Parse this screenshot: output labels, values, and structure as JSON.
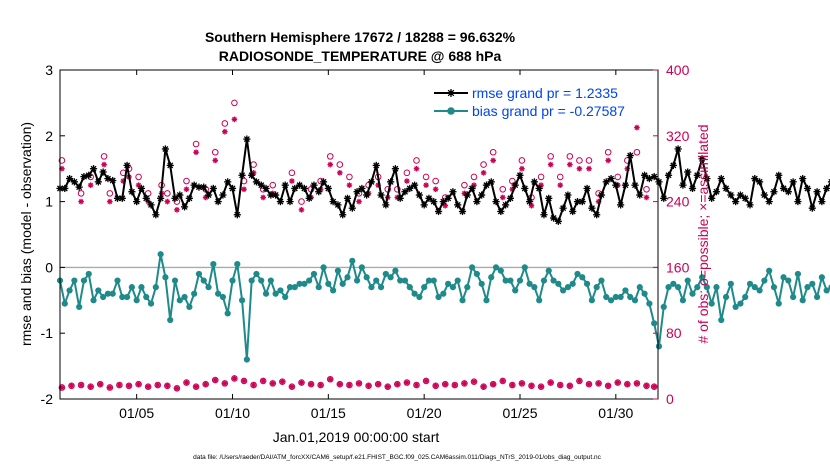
{
  "chart_data": {
    "type": "line",
    "title_line1": "Southern Hemisphere 17672 / 18288 = 96.632%",
    "title_line2": "RADIOSONDE_TEMPERATURE @ 688 hPa",
    "xlabel": "Jan.01,2019 00:00:00 start",
    "ylabel_left": "rmse and bias (model - observation)",
    "ylabel_right": "# of obs: o=possible; ×=assimilated",
    "footer": "data file: /Users/raeder/DAI/ATM_forcXX/CAM6_setup/f.e21.FHIST_BGC.f09_025.CAM6assim.011/Diags_NTrS_2019-01/obs_diag_output.nc",
    "xlim": [
      1,
      32.2
    ],
    "ylim_left": [
      -2,
      3
    ],
    "ylim_right": [
      0,
      400
    ],
    "xticks": [
      5,
      10,
      15,
      20,
      25,
      30
    ],
    "xtick_labels": [
      "01/05",
      "01/10",
      "01/15",
      "01/20",
      "01/25",
      "01/30"
    ],
    "yticks_left": [
      -2,
      -1,
      0,
      1,
      2,
      3
    ],
    "ytick_labels_left": [
      "-2",
      "-1",
      "0",
      "1",
      "2",
      "3"
    ],
    "yticks_right": [
      0,
      80,
      160,
      240,
      320,
      400
    ],
    "ytick_labels_right": [
      "0",
      "80",
      "160",
      "240",
      "320",
      "400"
    ],
    "legend": {
      "rmse": "rmse grand pr = 1.2335",
      "bias": "bias grand pr = -0.27587"
    },
    "colors": {
      "rmse": "#000000",
      "bias": "#1f8a8a",
      "obs": "#cc0055",
      "legend_text": "#0044ee",
      "zero_line": "#aaaaaa"
    },
    "x_start": 1.0,
    "x_step": 0.25,
    "rmse": [
      1.2,
      1.2,
      1.35,
      1.3,
      1.22,
      1.38,
      1.4,
      1.5,
      1.3,
      1.45,
      1.35,
      1.32,
      1.05,
      1.05,
      1.55,
      1.15,
      1.0,
      1.2,
      1.05,
      0.95,
      0.8,
      1.05,
      1.8,
      1.55,
      1.05,
      1.1,
      0.92,
      1.05,
      1.25,
      1.22,
      1.22,
      1.1,
      1.2,
      1.0,
      1.1,
      1.3,
      1.2,
      0.8,
      1.4,
      1.95,
      1.4,
      1.3,
      1.25,
      1.2,
      1.1,
      1.1,
      1.0,
      1.25,
      1.0,
      1.2,
      1.25,
      1.2,
      1.05,
      1.25,
      1.15,
      1.3,
      1.2,
      1.0,
      0.95,
      0.8,
      1.05,
      0.9,
      1.15,
      1.2,
      1.1,
      1.3,
      1.55,
      1.1,
      0.95,
      1.3,
      1.5,
      1.05,
      1.15,
      1.2,
      1.25,
      1.1,
      0.95,
      1.05,
      1.0,
      0.85,
      1.0,
      1.05,
      1.15,
      0.95,
      0.85,
      1.1,
      1.2,
      1.0,
      1.1,
      1.25,
      1.3,
      1.0,
      0.85,
      0.95,
      1.05,
      1.25,
      1.4,
      1.2,
      1.0,
      1.3,
      1.2,
      0.8,
      1.05,
      0.75,
      0.7,
      0.9,
      1.1,
      0.85,
      1.0,
      1.0,
      1.2,
      0.9,
      0.8,
      1.1,
      1.3,
      1.35,
      1.25,
      0.95,
      1.25,
      1.7,
      1.25,
      1.1,
      1.4,
      1.35,
      1.38,
      1.3,
      1.05,
      1.4,
      1.55,
      1.8,
      1.25,
      1.45,
      1.2,
      1.4,
      1.65,
      1.35,
      1.05,
      1.15,
      1.35,
      1.2,
      1.1,
      1.0,
      1.1,
      1.05,
      0.95,
      1.35,
      1.3,
      1.1,
      1.0,
      1.15,
      1.4,
      1.2,
      1.15,
      1.3,
      1.0,
      1.35,
      1.2,
      0.9,
      1.15,
      1.0,
      1.2,
      1.3,
      1.2,
      1.05,
      1.3,
      1.05,
      1.2,
      1.2,
      1.0,
      0.75,
      1.0,
      1.3,
      1.15,
      1.1,
      1.4,
      1.25,
      1.1,
      1.3,
      1.6,
      1.4,
      1.2,
      1.45,
      1.3,
      1.0,
      1.15,
      1.2,
      1.3,
      1.1,
      1.1,
      1.2,
      0.8,
      1.2,
      1.0,
      1.1,
      0.95,
      0.9,
      1.1,
      1.15,
      1.05,
      1.0,
      0.8,
      1.0,
      1.3,
      1.05,
      1.2,
      1.1,
      1.6,
      1.4,
      1.5,
      1.3,
      1.1,
      1.2,
      1.15,
      1.2,
      1.2,
      1.15,
      1.05,
      1.02,
      1.0
    ],
    "bias": [
      -0.2,
      -0.55,
      -0.35,
      -0.2,
      -0.6,
      -0.2,
      -0.1,
      -0.5,
      -0.35,
      -0.45,
      -0.4,
      -0.4,
      -0.2,
      -0.45,
      -0.45,
      -0.3,
      -0.5,
      -0.3,
      -0.45,
      -0.55,
      -0.3,
      0.2,
      -0.15,
      -0.8,
      -0.2,
      -0.5,
      -0.45,
      -0.6,
      -0.4,
      -0.1,
      -0.2,
      -0.3,
      0.05,
      -0.4,
      -0.45,
      -0.7,
      -0.2,
      0.05,
      -0.5,
      -1.4,
      -0.2,
      -0.1,
      -0.2,
      -0.4,
      -0.2,
      -0.4,
      -0.35,
      -0.45,
      -0.3,
      -0.3,
      -0.25,
      -0.25,
      -0.2,
      -0.1,
      -0.3,
      0.0,
      -0.25,
      -0.35,
      -0.05,
      -0.25,
      -0.15,
      0.1,
      -0.2,
      0.0,
      -0.15,
      -0.3,
      -0.2,
      -0.3,
      -0.1,
      -0.15,
      -0.05,
      -0.2,
      -0.2,
      -0.3,
      -0.4,
      -0.45,
      -0.3,
      -0.2,
      -0.2,
      -0.45,
      -0.4,
      -0.25,
      -0.3,
      -0.2,
      -0.5,
      -0.3,
      0.0,
      -0.1,
      -0.25,
      -0.5,
      -0.15,
      0.0,
      -0.05,
      -0.2,
      -0.2,
      -0.35,
      -0.2,
      0.0,
      -0.25,
      -0.3,
      -0.5,
      -0.2,
      -0.05,
      -0.2,
      -0.25,
      -0.35,
      -0.3,
      -0.25,
      -0.1,
      -0.15,
      -0.25,
      -0.5,
      -0.3,
      -0.2,
      -0.45,
      -0.5,
      -0.45,
      -0.45,
      -0.35,
      -0.45,
      -0.5,
      -0.3,
      -0.4,
      -0.55,
      -0.85,
      -1.2,
      -0.6,
      -0.3,
      -0.25,
      -0.3,
      -0.5,
      -0.2,
      -0.4,
      -0.3,
      -0.15,
      -0.3,
      -0.55,
      -0.3,
      -0.8,
      -0.45,
      -0.25,
      -0.6,
      -0.55,
      -0.45,
      -0.25,
      -0.3,
      -0.35,
      -0.2,
      -0.05,
      -0.3,
      -0.55,
      -0.15,
      -0.2,
      -0.45,
      -0.1,
      -0.5,
      -0.3,
      -0.25,
      -0.45,
      -0.15,
      -0.35,
      -0.3,
      -0.4,
      -0.3,
      -0.3,
      -0.25,
      -0.2,
      -0.15,
      -0.1,
      -0.25,
      -0.1,
      -0.3,
      0.25,
      -0.1,
      0.2,
      -0.15,
      -0.4,
      -0.1,
      -0.25,
      0.5,
      0.05,
      -0.25,
      -0.1,
      -0.2,
      -0.15,
      0.2,
      -0.25,
      -0.3,
      0.55,
      -0.35,
      -0.55,
      -0.5,
      -0.35,
      -0.45,
      -0.45,
      -0.5,
      -0.35,
      -0.3,
      -0.6,
      -0.35,
      -0.45,
      -0.5,
      -0.3,
      -0.3,
      -0.4,
      -0.3,
      -0.2,
      -0.4,
      -0.45,
      -0.3,
      -0.35,
      -0.25,
      0.25,
      -0.05,
      -0.1,
      -0.5,
      -0.7
    ],
    "obs_possible_x": [
      1.1,
      2.1,
      2.6,
      3.3,
      3.6,
      4.3,
      4.6,
      5.1,
      5.6,
      6.3,
      6.6,
      7.1,
      7.6,
      8.1,
      8.6,
      9.1,
      9.6,
      10.1,
      10.6,
      11.1,
      11.6,
      12.1,
      13.1,
      13.6,
      14.1,
      14.6,
      15.1,
      15.6,
      16.1,
      16.6,
      17.1,
      17.6,
      18.1,
      18.6,
      19.1,
      19.6,
      20.1,
      20.6,
      21.1,
      22.1,
      22.6,
      23.1,
      23.6,
      24.1,
      24.6,
      25.1,
      25.6,
      26.1,
      26.6,
      27.1,
      27.6,
      28.1,
      28.6,
      29.1,
      29.6,
      30.1,
      30.6,
      31.1,
      31.6
    ],
    "obs_possible_y": [
      290,
      250,
      270,
      295,
      250,
      275,
      280,
      270,
      250,
      260,
      250,
      240,
      265,
      310,
      255,
      300,
      335,
      360,
      265,
      285,
      255,
      260,
      275,
      240,
      255,
      265,
      295,
      285,
      270,
      250,
      260,
      270,
      255,
      255,
      275,
      290,
      270,
      265,
      245,
      260,
      270,
      285,
      300,
      255,
      265,
      290,
      245,
      270,
      295,
      270,
      295,
      290,
      290,
      250,
      300,
      270,
      290,
      300,
      255
    ],
    "obs_assim_x": [
      1.1,
      2.1,
      2.6,
      3.3,
      3.6,
      4.3,
      4.6,
      5.1,
      5.6,
      6.3,
      6.6,
      7.1,
      7.6,
      8.1,
      8.6,
      9.1,
      9.6,
      10.1,
      10.6,
      11.1,
      11.6,
      12.1,
      13.1,
      13.6,
      14.1,
      14.6,
      15.1,
      15.6,
      16.1,
      16.6,
      17.1,
      17.6,
      18.1,
      18.6,
      19.1,
      19.6,
      20.1,
      20.6,
      21.1,
      22.1,
      22.6,
      23.1,
      23.6,
      24.1,
      24.6,
      25.1,
      25.6,
      26.1,
      26.6,
      27.1,
      27.6,
      28.1,
      28.6,
      29.1,
      29.6,
      30.1,
      30.6,
      31.1,
      31.6
    ],
    "obs_assim_y": [
      280,
      240,
      260,
      285,
      240,
      265,
      270,
      260,
      240,
      250,
      240,
      230,
      255,
      300,
      245,
      290,
      325,
      340,
      255,
      275,
      245,
      250,
      265,
      230,
      245,
      255,
      285,
      275,
      260,
      240,
      250,
      260,
      245,
      245,
      265,
      280,
      260,
      255,
      235,
      250,
      260,
      275,
      290,
      245,
      255,
      280,
      235,
      260,
      285,
      260,
      285,
      280,
      280,
      240,
      290,
      260,
      280,
      330,
      245
    ],
    "obs_low_x": [
      1.1,
      1.6,
      2.1,
      2.6,
      3.1,
      3.6,
      4.1,
      4.6,
      5.1,
      5.6,
      6.1,
      6.6,
      7.1,
      7.6,
      8.1,
      8.6,
      9.1,
      9.6,
      10.1,
      10.6,
      11.1,
      11.6,
      12.1,
      12.6,
      13.1,
      13.6,
      14.1,
      14.6,
      15.1,
      15.6,
      16.1,
      16.6,
      17.1,
      17.6,
      18.1,
      18.6,
      19.1,
      19.6,
      20.1,
      20.6,
      21.1,
      21.6,
      22.1,
      22.6,
      23.1,
      23.6,
      24.1,
      24.6,
      25.1,
      25.6,
      26.1,
      26.6,
      27.1,
      27.6,
      28.1,
      28.6,
      29.1,
      29.6,
      30.1,
      30.6,
      31.1,
      31.6,
      32.0
    ],
    "obs_low_y": [
      14,
      16,
      17,
      15,
      18,
      14,
      17,
      16,
      18,
      15,
      17,
      16,
      13,
      20,
      15,
      18,
      23,
      19,
      25,
      22,
      17,
      22,
      19,
      21,
      15,
      20,
      18,
      17,
      24,
      18,
      17,
      19,
      16,
      18,
      15,
      18,
      20,
      17,
      22,
      16,
      18,
      17,
      19,
      21,
      15,
      18,
      22,
      17,
      19,
      16,
      15,
      20,
      17,
      16,
      22,
      18,
      19,
      16,
      20,
      18,
      19,
      16,
      15
    ]
  }
}
